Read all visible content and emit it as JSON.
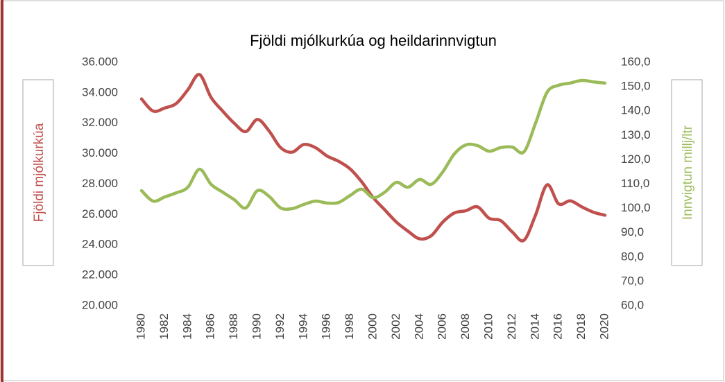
{
  "chart_data": {
    "type": "line",
    "title": "Fjöldi mjólkurkúa og heildarinnvigtun",
    "ylabel": "Fjöldi mjólkurkúa",
    "y2label": "Innvigtun millj/ltr",
    "x": [
      1980,
      1981,
      1982,
      1983,
      1984,
      1985,
      1986,
      1987,
      1988,
      1989,
      1990,
      1991,
      1992,
      1993,
      1994,
      1995,
      1996,
      1997,
      1998,
      1999,
      2000,
      2001,
      2002,
      2003,
      2004,
      2005,
      2006,
      2007,
      2008,
      2009,
      2010,
      2011,
      2012,
      2013,
      2014,
      2015,
      2016,
      2017,
      2018,
      2019,
      2020
    ],
    "xlim": [
      1980,
      2020
    ],
    "xticks": [
      1980,
      1982,
      1984,
      1986,
      1988,
      1990,
      1992,
      1994,
      1996,
      1998,
      2000,
      2002,
      2004,
      2006,
      2008,
      2010,
      2012,
      2014,
      2016,
      2018,
      2020
    ],
    "series": [
      {
        "name": "Fjöldi mjólkurkúa",
        "color": "#c0504d",
        "axis": "y",
        "values": [
          33600,
          32800,
          33000,
          33300,
          34200,
          35200,
          33700,
          32800,
          32000,
          31450,
          32250,
          31500,
          30400,
          30100,
          30600,
          30400,
          29850,
          29500,
          29000,
          28150,
          27100,
          26300,
          25500,
          24900,
          24400,
          24600,
          25500,
          26100,
          26250,
          26500,
          25750,
          25600,
          24850,
          24300,
          25950,
          27950,
          26700,
          26900,
          26500,
          26150,
          25950
        ]
      },
      {
        "name": "Innvigtun millj/ltr",
        "color": "#9bbb59",
        "axis": "y2",
        "values": [
          107.3,
          103,
          104.7,
          106.4,
          108.7,
          116.1,
          109.9,
          106.7,
          103.6,
          100.2,
          107.3,
          105,
          100.2,
          99.9,
          101.6,
          103,
          102.2,
          102.4,
          105.3,
          107.9,
          104.4,
          106.7,
          110.7,
          108.7,
          111.9,
          109.9,
          115,
          122.4,
          126.1,
          125.8,
          123.5,
          125,
          125.2,
          123.2,
          134.9,
          147.7,
          150.6,
          151.5,
          152.6,
          152,
          151.5
        ]
      }
    ],
    "ylim": [
      20000,
      36000
    ],
    "yticks": [
      {
        "value": 20000,
        "label": "20.000"
      },
      {
        "value": 22000,
        "label": "22.000"
      },
      {
        "value": 24000,
        "label": "24.000"
      },
      {
        "value": 26000,
        "label": "26.000"
      },
      {
        "value": 28000,
        "label": "28.000"
      },
      {
        "value": 30000,
        "label": "30.000"
      },
      {
        "value": 32000,
        "label": "32.000"
      },
      {
        "value": 34000,
        "label": "34.000"
      },
      {
        "value": 36000,
        "label": "36.000"
      }
    ],
    "y2lim": [
      60,
      160
    ],
    "y2ticks": [
      {
        "value": 60,
        "label": "60,0"
      },
      {
        "value": 70,
        "label": "70,0"
      },
      {
        "value": 80,
        "label": "80,0"
      },
      {
        "value": 90,
        "label": "90,0"
      },
      {
        "value": 100,
        "label": "100,0"
      },
      {
        "value": 110,
        "label": "110,0"
      },
      {
        "value": 120,
        "label": "120,0"
      },
      {
        "value": 130,
        "label": "130,0"
      },
      {
        "value": 140,
        "label": "140,0"
      },
      {
        "value": 150,
        "label": "150,0"
      },
      {
        "value": 160,
        "label": "160,0"
      }
    ],
    "grid": false
  }
}
